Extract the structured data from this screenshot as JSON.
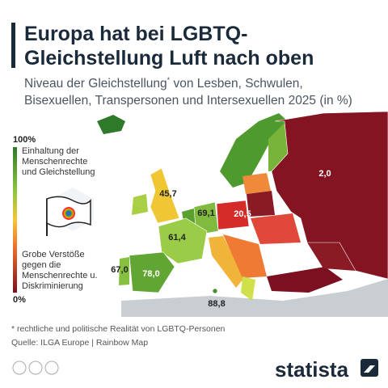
{
  "header": {
    "title_lines": [
      "Europa hat bei LGBTQ-",
      "Gleichstellung Luft nach oben"
    ],
    "subtitle": {
      "line1_start": "Niveau der Gleichstellung",
      "footnote_mark": "*",
      "line1_end": " von Lesben, Schwulen,",
      "line2": "Bisexuellen, Transpersonen und Intersexuellen 2025 (in %)"
    }
  },
  "legend": {
    "max": {
      "value": 100,
      "label": "100%"
    },
    "max_text": [
      "Einhaltung der",
      "Menschenrechte",
      "und Gleichstellung"
    ],
    "min_text": [
      "Grobe Verstöße",
      "gegen die",
      "Menschenrechte u.",
      "Diskriminierung"
    ],
    "min": {
      "value": 0,
      "label": "0%"
    }
  },
  "map": {
    "labels": [
      {
        "value": 2.0,
        "label": "2,0"
      },
      {
        "value": 45.7,
        "label": "45,7"
      },
      {
        "value": 69.1,
        "label": "69,1"
      },
      {
        "value": 20.5,
        "label": "20,5"
      },
      {
        "value": 61.4,
        "label": "61,4"
      },
      {
        "value": 67.0,
        "label": "67,0"
      },
      {
        "value": 78.0,
        "label": "78,0"
      },
      {
        "value": 88.8,
        "label": "88,8"
      }
    ]
  },
  "footer": {
    "footnote": "* rechtliche und politische Realität von LGBTQ-Personen",
    "source": "Quelle: ILGA Europe | Rainbow Map",
    "brand": "statista"
  }
}
